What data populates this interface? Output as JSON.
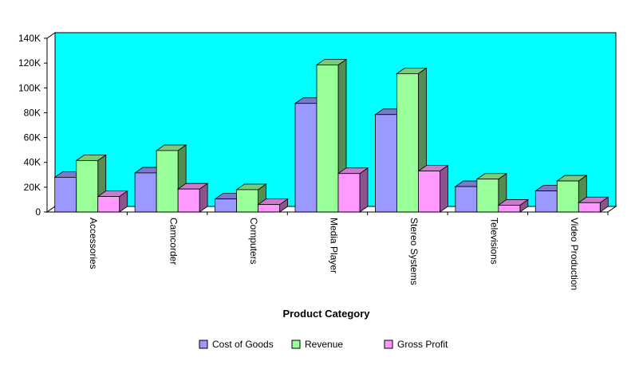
{
  "chart_data": {
    "type": "bar",
    "style": "3d-clustered-columns",
    "title": "",
    "xlabel": "Product Category",
    "ylabel": "",
    "categories": [
      "Accessories",
      "Camcorder",
      "Computers",
      "Media Player",
      "Stereo Systems",
      "Televisions",
      "Video Production"
    ],
    "series": [
      {
        "name": "Cost of Goods",
        "color": "#9999ff",
        "values": [
          28000,
          31500,
          10500,
          87500,
          78500,
          20500,
          17000
        ]
      },
      {
        "name": "Revenue",
        "color": "#99ff99",
        "values": [
          41500,
          49500,
          18000,
          118500,
          111500,
          26500,
          25000
        ]
      },
      {
        "name": "Gross Profit",
        "color": "#ff99ff",
        "values": [
          12500,
          18500,
          6000,
          31000,
          33000,
          5500,
          7500
        ]
      }
    ],
    "ylim": [
      0,
      140000
    ],
    "yticks": [
      0,
      20000,
      40000,
      60000,
      80000,
      100000,
      120000,
      140000
    ],
    "ytick_labels": [
      "0",
      "20K",
      "40K",
      "60K",
      "80K",
      "100K",
      "120K",
      "140K"
    ],
    "plot_background": "#00ffff",
    "grid": false,
    "legend": "bottom-center"
  }
}
